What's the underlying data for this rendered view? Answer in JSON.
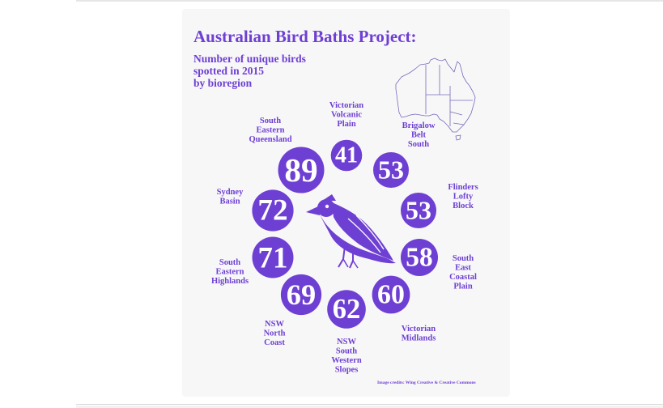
{
  "chart_data": {
    "type": "bubble",
    "title": "Australian Bird Baths Project:",
    "subtitle": [
      "Number of unique birds",
      "spotted in 2015",
      "by bioregion"
    ],
    "credit": "Image credits: Wing Creative & Creative Commons",
    "series": [
      {
        "region": [
          "Victorian",
          "Volcanic",
          "Plain"
        ],
        "value": 41
      },
      {
        "region": [
          "Brigalow",
          "Belt",
          "South"
        ],
        "value": 53
      },
      {
        "region": [
          "Flinders",
          "Lofty",
          "Block"
        ],
        "value": 53
      },
      {
        "region": [
          "South",
          "East",
          "Coastal",
          "Plain"
        ],
        "value": 58
      },
      {
        "region": [
          "Victorian",
          "Midlands"
        ],
        "value": 60
      },
      {
        "region": [
          "NSW",
          "South",
          "Western",
          "Slopes"
        ],
        "value": 62
      },
      {
        "region": [
          "NSW",
          "North",
          "Coast"
        ],
        "value": 69
      },
      {
        "region": [
          "South",
          "Eastern",
          "Highlands"
        ],
        "value": 71
      },
      {
        "region": [
          "Sydney",
          "Basin"
        ],
        "value": 72
      },
      {
        "region": [
          "South",
          "Eastern",
          "Queensland"
        ],
        "value": 89
      }
    ]
  },
  "colors": {
    "accent": "#6e3fd3",
    "background": "#f7f7f8",
    "number_text": "#ffffff"
  },
  "icons": [
    "australia-map-icon",
    "bird-icon"
  ]
}
